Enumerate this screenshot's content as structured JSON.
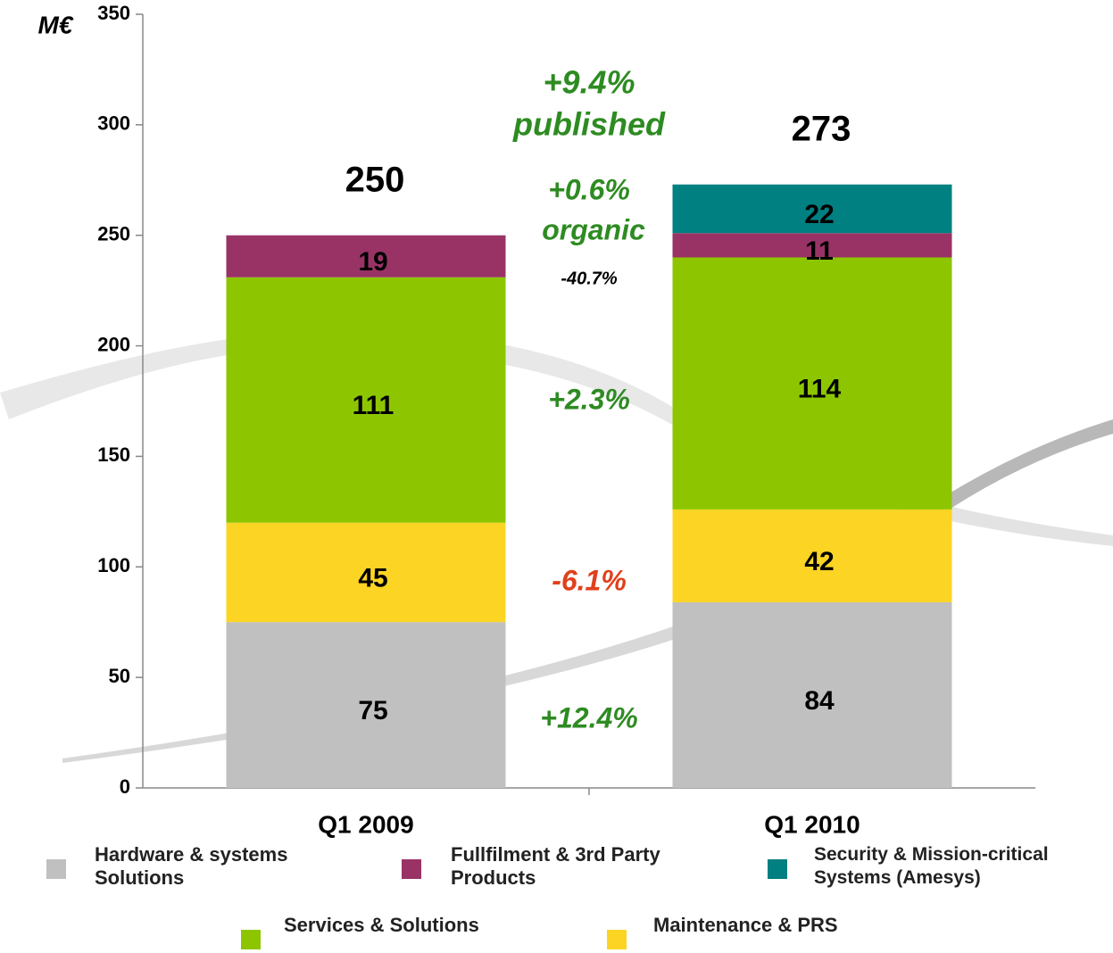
{
  "chart_data": {
    "type": "stacked_bar",
    "y_unit_label": "M€",
    "categories": [
      "Q1 2009",
      "Q1 2010"
    ],
    "series": [
      {
        "name": "Hardware & systems Solutions",
        "color": "#c0c0c0",
        "values": [
          75,
          84
        ]
      },
      {
        "name": "Maintenance & PRS",
        "color": "#fcd424",
        "values": [
          45,
          42
        ]
      },
      {
        "name": "Services & Solutions",
        "color": "#8dc600",
        "values": [
          111,
          114
        ]
      },
      {
        "name": "Fullfilment & 3rd Party Products",
        "color": "#993366",
        "values": [
          19,
          11
        ]
      },
      {
        "name": "Security & Mission-critical Systems (Amesys)",
        "color": "#008080",
        "values": [
          null,
          22
        ]
      }
    ],
    "totals": [
      250,
      273
    ],
    "annotations": [
      {
        "text": "+9.4%",
        "color": "#2e8b22"
      },
      {
        "text": "published",
        "color": "#2e8b22"
      },
      {
        "text": "+0.6%",
        "color": "#2e8b22"
      },
      {
        "text": "organic",
        "color": "#2e8b22"
      },
      {
        "text": "-40.7%",
        "color": "#000000"
      },
      {
        "text": "+2.3%",
        "color": "#2e8b22"
      },
      {
        "text": "-6.1%",
        "color": "#e0401c"
      },
      {
        "text": "+12.4%",
        "color": "#2e8b22"
      }
    ],
    "ylim": [
      0,
      350
    ],
    "yticks": [
      0,
      50,
      100,
      150,
      200,
      250,
      300,
      350
    ]
  }
}
